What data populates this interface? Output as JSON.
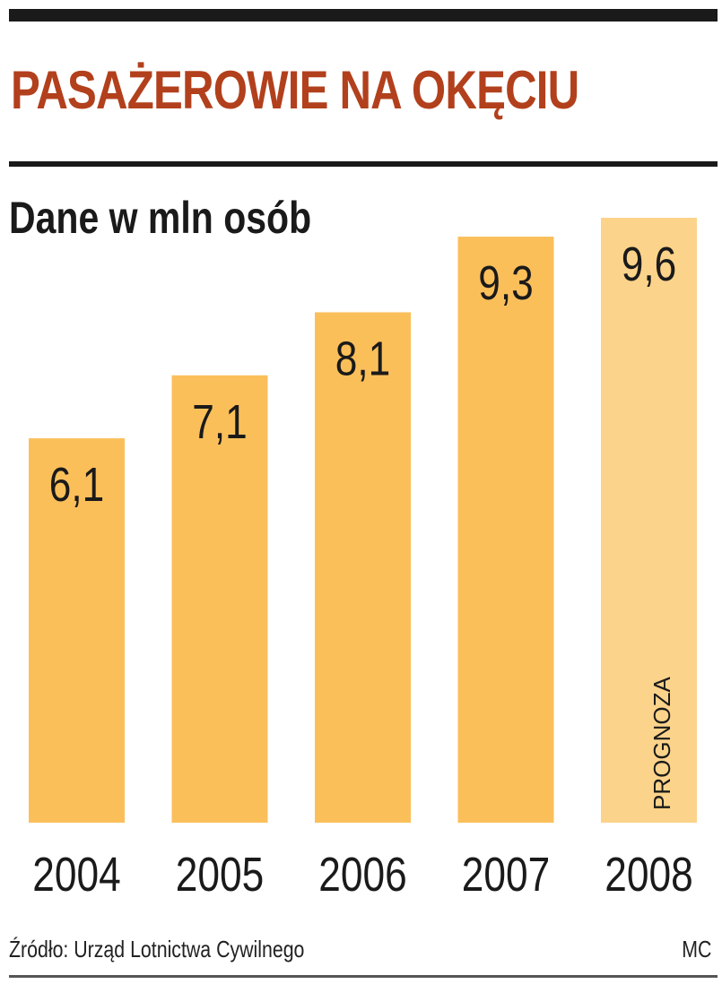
{
  "header": {
    "title": "PASAŻEROWIE NA OKĘCIU",
    "subtitle": "Dane w mln osób"
  },
  "footer": {
    "source": "Źródło: Urząd Lotnictwa Cywilnego",
    "credit": "MC"
  },
  "colors": {
    "title": "#b2401c",
    "bar": "#fbbf5a",
    "bar_forecast": "#fcd38a",
    "text": "#1a1a1a"
  },
  "chart_data": {
    "type": "bar",
    "title": "PASAŻEROWIE NA OKĘCIU",
    "subtitle": "Dane w mln osób",
    "categories": [
      "2004",
      "2005",
      "2006",
      "2007",
      "2008"
    ],
    "values": [
      6.1,
      7.1,
      8.1,
      9.3,
      9.6
    ],
    "value_labels": [
      "6,1",
      "7,1",
      "8,1",
      "9,3",
      "9,6"
    ],
    "annotations": [
      {
        "category": "2008",
        "text": "PROGNOZA"
      }
    ],
    "xlabel": "",
    "ylabel": "",
    "ylim": [
      0,
      9.6
    ],
    "grid": false,
    "legend": "none"
  }
}
